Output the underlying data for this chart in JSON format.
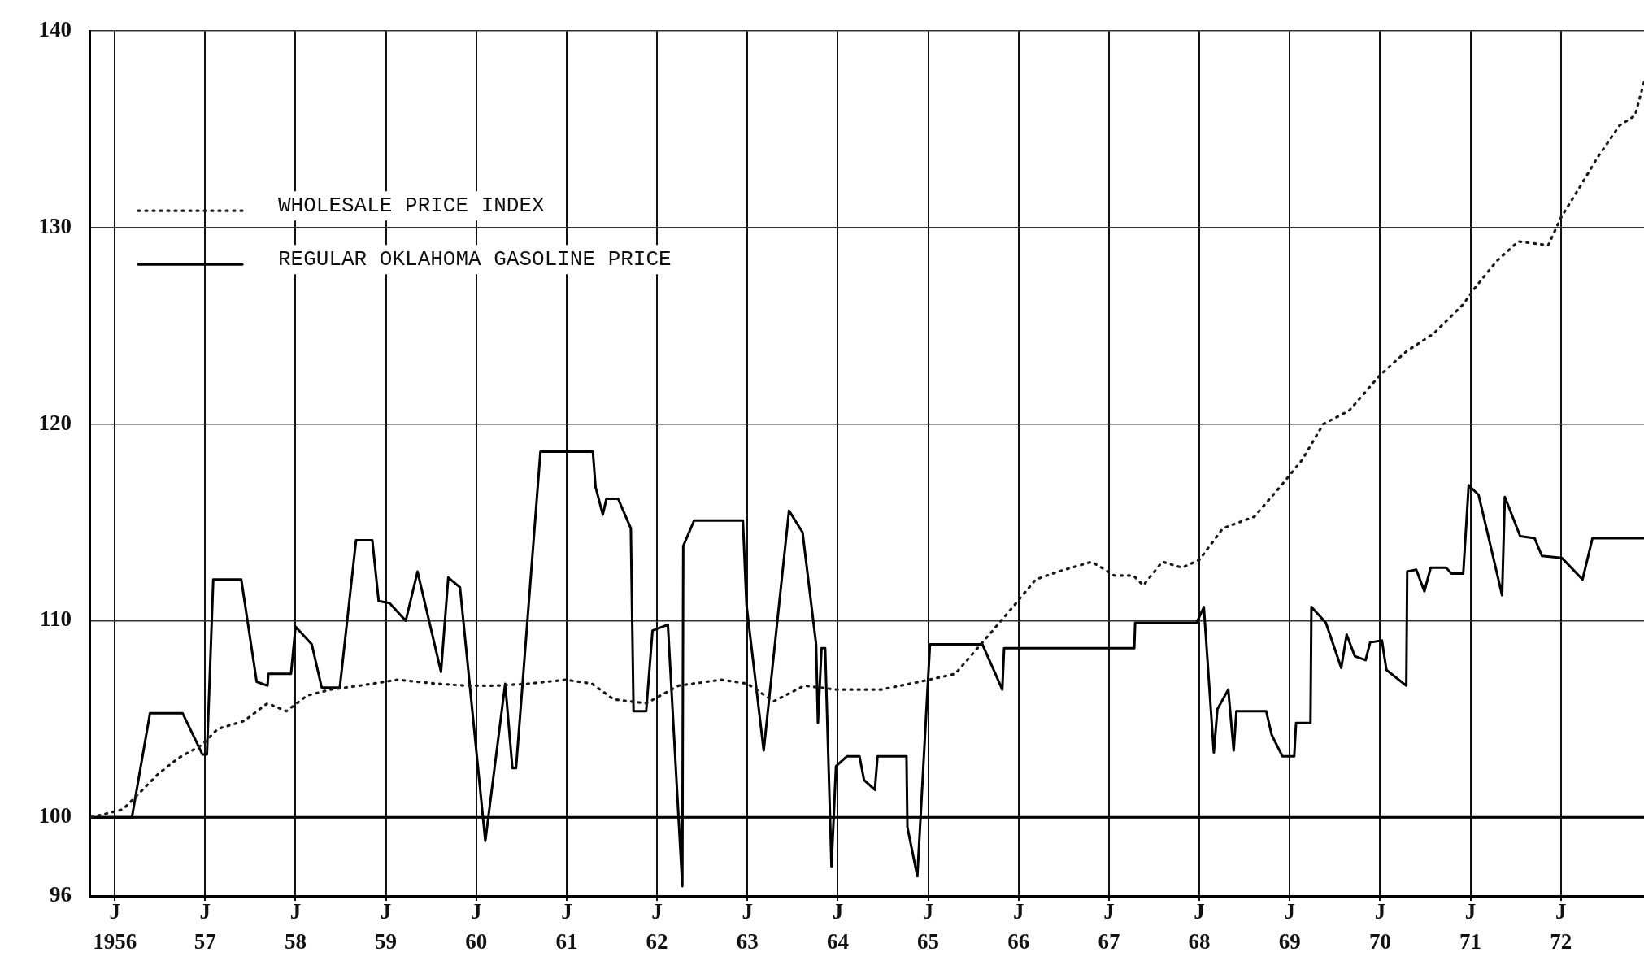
{
  "chart_data": {
    "type": "line",
    "legend": "top left",
    "grid": true,
    "marker": "none",
    "xlim": [
      1955.72,
      1972.92
    ],
    "ylim": [
      96,
      140
    ],
    "yticks": [
      96,
      100,
      110,
      120,
      130,
      140
    ],
    "xticks": [
      {
        "value": 1956,
        "label": "1956"
      },
      {
        "value": 1957,
        "label": "57"
      },
      {
        "value": 1958,
        "label": "58"
      },
      {
        "value": 1959,
        "label": "59"
      },
      {
        "value": 1960,
        "label": "60"
      },
      {
        "value": 1961,
        "label": "61"
      },
      {
        "value": 1962,
        "label": "62"
      },
      {
        "value": 1963,
        "label": "63"
      },
      {
        "value": 1964,
        "label": "64"
      },
      {
        "value": 1965,
        "label": "65"
      },
      {
        "value": 1966,
        "label": "66"
      },
      {
        "value": 1967,
        "label": "67"
      },
      {
        "value": 1968,
        "label": "68"
      },
      {
        "value": 1969,
        "label": "69"
      },
      {
        "value": 1970,
        "label": "70"
      },
      {
        "value": 1971,
        "label": "71"
      },
      {
        "value": 1972,
        "label": "72"
      }
    ],
    "annotations": [
      "J",
      "J",
      "J",
      "J",
      "J",
      "J",
      "J",
      "J",
      "J",
      "J",
      "J",
      "J",
      "J",
      "J",
      "J",
      "J",
      "J"
    ],
    "ref_lines": [
      {
        "axis": "y",
        "value": 100,
        "color": "#000000",
        "line_style": "solid"
      }
    ],
    "series": [
      {
        "name": "WHOLESALE PRICE INDEX",
        "color": "#1a1a1a",
        "line_style": "dotted",
        "x": [
          1955.74,
          1956.09,
          1956.22,
          1956.48,
          1956.7,
          1956.97,
          1957.14,
          1957.43,
          1957.69,
          1957.9,
          1958.13,
          1958.39,
          1958.71,
          1959.13,
          1959.56,
          1959.88,
          1960.22,
          1960.58,
          1960.99,
          1961.28,
          1961.52,
          1961.88,
          1962.24,
          1962.71,
          1963.0,
          1963.29,
          1963.63,
          1963.98,
          1964.48,
          1964.91,
          1965.3,
          1965.62,
          1965.9,
          1966.19,
          1966.44,
          1966.81,
          1967.06,
          1967.27,
          1967.38,
          1967.59,
          1967.81,
          1968.0,
          1968.26,
          1968.61,
          1968.91,
          1969.14,
          1969.37,
          1969.66,
          1970.0,
          1970.29,
          1970.59,
          1970.92,
          1971.06,
          1971.29,
          1971.53,
          1971.86,
          1972.0,
          1972.24,
          1972.41,
          1972.65,
          1972.82,
          1972.92
        ],
        "values": [
          100,
          100.4,
          101,
          102.2,
          103,
          103.7,
          104.5,
          104.9,
          105.8,
          105.4,
          106.2,
          106.5,
          106.7,
          107,
          106.8,
          106.7,
          106.7,
          106.8,
          107,
          106.8,
          106,
          105.8,
          106.7,
          107,
          106.8,
          105.9,
          106.7,
          106.5,
          106.5,
          106.9,
          107.3,
          109,
          110.5,
          112.1,
          112.5,
          113,
          112.3,
          112.3,
          111.8,
          113,
          112.7,
          113.1,
          114.7,
          115.3,
          116.9,
          118.2,
          120,
          120.7,
          122.5,
          123.7,
          124.6,
          126.1,
          127,
          128.3,
          129.3,
          129.1,
          130.5,
          132.3,
          133.6,
          135.2,
          135.7,
          137.4
        ]
      },
      {
        "name": "REGULAR OKLAHOMA GASOLINE PRICE",
        "color": "#000000",
        "line_style": "solid",
        "x": [
          1955.74,
          1956.19,
          1956.39,
          1956.75,
          1956.97,
          1957.02,
          1957.09,
          1957.4,
          1957.57,
          1957.69,
          1957.7,
          1957.95,
          1958.0,
          1958.18,
          1958.29,
          1958.49,
          1958.67,
          1958.85,
          1958.92,
          1959.04,
          1959.22,
          1959.35,
          1959.61,
          1959.69,
          1959.82,
          1960.1,
          1960.32,
          1960.4,
          1960.44,
          1960.71,
          1961.29,
          1961.32,
          1961.4,
          1961.44,
          1961.57,
          1961.71,
          1961.74,
          1961.88,
          1961.95,
          1962.12,
          1962.28,
          1962.29,
          1962.41,
          1962.95,
          1962.99,
          1963.18,
          1963.46,
          1963.61,
          1963.76,
          1963.78,
          1963.82,
          1963.86,
          1963.93,
          1963.98,
          1964.1,
          1964.24,
          1964.29,
          1964.41,
          1964.44,
          1964.76,
          1964.77,
          1964.88,
          1965.02,
          1965.6,
          1965.82,
          1965.84,
          1967.28,
          1967.29,
          1967.97,
          1968.05,
          1968.16,
          1968.2,
          1968.32,
          1968.38,
          1968.41,
          1968.74,
          1968.8,
          1968.92,
          1969.05,
          1969.07,
          1969.23,
          1969.24,
          1969.4,
          1969.57,
          1969.63,
          1969.72,
          1969.84,
          1969.89,
          1970.02,
          1970.07,
          1970.29,
          1970.3,
          1970.4,
          1970.49,
          1970.56,
          1970.73,
          1970.79,
          1970.92,
          1970.98,
          1971.09,
          1971.35,
          1971.38,
          1971.55,
          1971.71,
          1971.79,
          1972.01,
          1972.24,
          1972.35,
          1972.92
        ],
        "values": [
          100,
          100,
          105.3,
          105.3,
          103.2,
          103.2,
          112.1,
          112.1,
          106.9,
          106.7,
          107.3,
          107.3,
          109.7,
          108.8,
          106.6,
          106.6,
          114.1,
          114.1,
          111,
          110.9,
          110,
          112.5,
          107.4,
          112.2,
          111.7,
          98.8,
          106.8,
          102.5,
          102.5,
          118.6,
          118.6,
          116.8,
          115.4,
          116.2,
          116.2,
          114.7,
          105.4,
          105.4,
          109.5,
          109.8,
          96.5,
          113.8,
          115.1,
          115.1,
          110.8,
          103.4,
          115.6,
          114.5,
          108.8,
          104.8,
          108.6,
          108.6,
          97.5,
          102.6,
          103.1,
          103.1,
          101.9,
          101.4,
          103.1,
          103.1,
          99.5,
          97,
          108.8,
          108.8,
          106.5,
          108.6,
          108.6,
          109.9,
          109.9,
          110.7,
          103.3,
          105.5,
          106.5,
          103.4,
          105.4,
          105.4,
          104.2,
          103.1,
          103.1,
          104.8,
          104.8,
          110.7,
          109.9,
          107.6,
          109.3,
          108.2,
          108,
          108.9,
          109,
          107.5,
          106.7,
          112.5,
          112.6,
          111.5,
          112.7,
          112.7,
          112.4,
          112.4,
          116.9,
          116.4,
          111.3,
          116.3,
          114.3,
          114.2,
          113.3,
          113.2,
          112.1,
          114.2,
          114.2
        ]
      }
    ]
  }
}
